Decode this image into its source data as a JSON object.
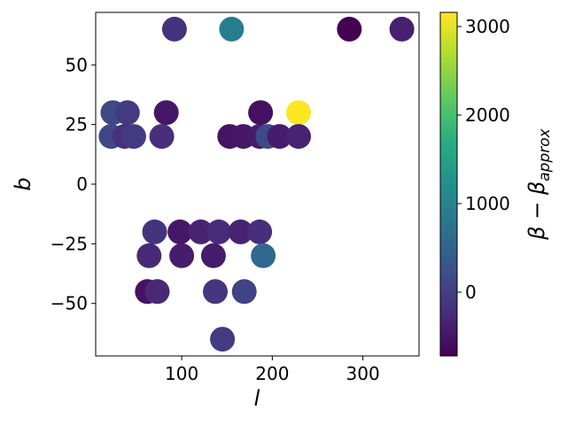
{
  "chart_data": {
    "type": "scatter",
    "title": "",
    "xlabel": "l",
    "ylabel": "b",
    "colorbar_label": "β − β_approx",
    "colorbar_label_parts": {
      "main": "β − β",
      "sub": "approx"
    },
    "xlim": [
      5,
      362
    ],
    "ylim": [
      -72,
      72
    ],
    "xticks": [
      100,
      200,
      300
    ],
    "yticks": [
      -50,
      -25,
      0,
      25,
      50
    ],
    "clim": [
      -720,
      3160
    ],
    "colorbar_ticks": [
      0,
      1000,
      2000,
      3000
    ],
    "colormap": "viridis",
    "marker": "circle",
    "grid": false,
    "points": [
      {
        "l": 92,
        "b": 65,
        "v": -150
      },
      {
        "l": 155,
        "b": 65,
        "v": 900
      },
      {
        "l": 285,
        "b": 65,
        "v": -720
      },
      {
        "l": 343,
        "b": 65,
        "v": -380
      },
      {
        "l": 24,
        "b": 30,
        "v": 150
      },
      {
        "l": 40,
        "b": 30,
        "v": -50
      },
      {
        "l": 83,
        "b": 30,
        "v": -480
      },
      {
        "l": 187,
        "b": 30,
        "v": -560
      },
      {
        "l": 229,
        "b": 30,
        "v": 3160
      },
      {
        "l": 22,
        "b": 20,
        "v": 100
      },
      {
        "l": 37,
        "b": 20,
        "v": -180
      },
      {
        "l": 47,
        "b": 20,
        "v": -50
      },
      {
        "l": 78,
        "b": 20,
        "v": -220
      },
      {
        "l": 153,
        "b": 20,
        "v": -520
      },
      {
        "l": 168,
        "b": 20,
        "v": -480
      },
      {
        "l": 186,
        "b": 20,
        "v": -420
      },
      {
        "l": 195,
        "b": 20,
        "v": 150
      },
      {
        "l": 208,
        "b": 20,
        "v": -420
      },
      {
        "l": 229,
        "b": 20,
        "v": -350
      },
      {
        "l": 70,
        "b": -20,
        "v": -150
      },
      {
        "l": 98,
        "b": -20,
        "v": -480
      },
      {
        "l": 121,
        "b": -20,
        "v": -350
      },
      {
        "l": 141,
        "b": -20,
        "v": -250
      },
      {
        "l": 165,
        "b": -20,
        "v": -350
      },
      {
        "l": 186,
        "b": -20,
        "v": -220
      },
      {
        "l": 64,
        "b": -30,
        "v": -280
      },
      {
        "l": 100,
        "b": -30,
        "v": -420
      },
      {
        "l": 135,
        "b": -30,
        "v": -420
      },
      {
        "l": 190,
        "b": -30,
        "v": 600
      },
      {
        "l": 62,
        "b": -45,
        "v": -530
      },
      {
        "l": 73,
        "b": -45,
        "v": -280
      },
      {
        "l": 137,
        "b": -45,
        "v": -120
      },
      {
        "l": 169,
        "b": -45,
        "v": 50
      },
      {
        "l": 145,
        "b": -65,
        "v": -50
      }
    ]
  }
}
